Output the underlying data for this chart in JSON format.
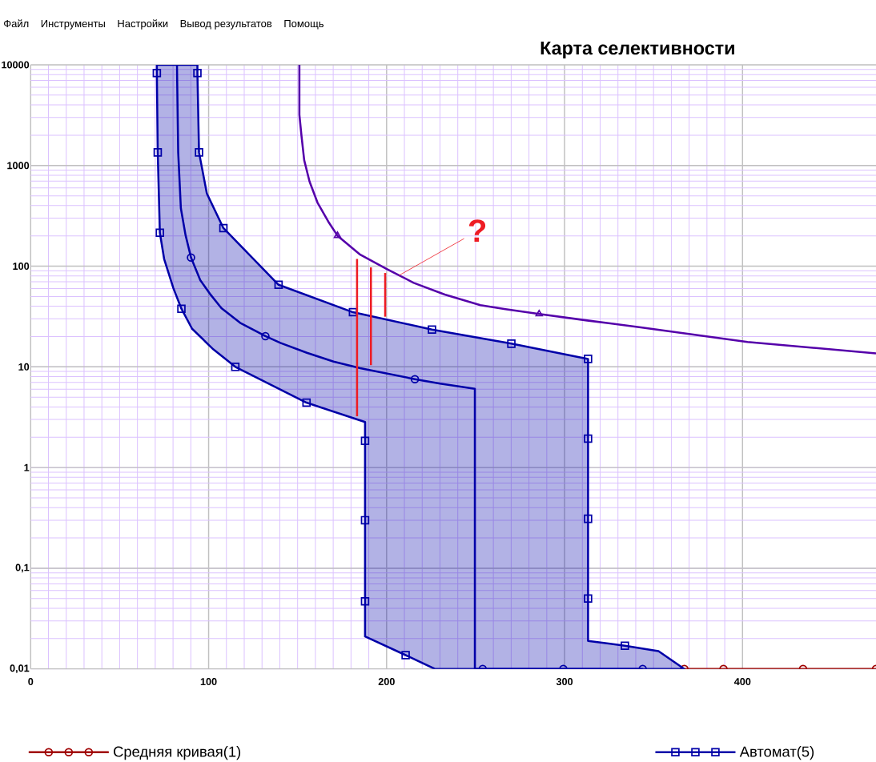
{
  "chart_data": {
    "type": "line",
    "title": "Карта селективности",
    "annotations": [
      "Файл",
      "Инструменты",
      "Настройки",
      "Вывод результатов",
      "Помощь",
      {
        "text": "?",
        "x": 207,
        "y": 81
      }
    ],
    "xlim": [
      0,
      475
    ],
    "xticks": [
      0,
      100,
      200,
      300,
      400
    ],
    "ylim": [
      0.01,
      10000
    ],
    "yticks": [
      {
        "value": 0.01,
        "label": "0,01"
      },
      {
        "value": 0.1,
        "label": "0,1"
      },
      1,
      10,
      100,
      1000,
      10000
    ],
    "log": "y",
    "grid": true,
    "legend": "bottom",
    "series": [
      {
        "name": "Средняя кривая(1)",
        "color": "#a00000",
        "marker": "circle",
        "x": [
          367.3,
          389.3,
          434.0,
          475
        ],
        "values": [
          0.01,
          0.01,
          0.01,
          0.01
        ]
      },
      {
        "type": "area",
        "color": "#0000a8",
        "x": [
          70.9,
          70.9,
          71.4,
          72.6,
          75.0,
          80.2,
          84.7,
          90.7,
          102.7,
          115.0,
          155.0,
          187.9,
          187.9,
          187.9,
          187.9,
          187.9,
          210.7,
          227.1,
          367.3,
          352.8,
          333.9,
          313.2,
          313.2,
          313.2,
          313.2,
          313.2,
          270.1,
          225.5,
          181.1,
          139.3,
          108.3,
          99.0,
          94.6,
          93.7,
          93.7
        ],
        "values": [
          10000,
          8300,
          1350,
          215,
          118,
          60.4,
          37.8,
          23.9,
          14.9,
          10.0,
          4.41,
          2.83,
          1.84,
          0.3,
          0.047,
          0.021,
          0.0137,
          0.01,
          0.01,
          0.015,
          0.017,
          0.019,
          0.05,
          0.31,
          1.94,
          12.0,
          17.0,
          23.5,
          34.9,
          65.4,
          239,
          527,
          1350,
          8300,
          10000
        ]
      },
      {
        "name": "Автомат(5)",
        "type": "scatter",
        "color": "#0000a8",
        "marker": "square",
        "x": [
          70.9,
          71.4,
          72.6,
          84.7,
          115.0,
          155.0,
          187.9,
          187.9,
          187.9,
          210.7,
          333.9,
          313.2,
          313.2,
          313.2,
          313.2,
          270.1,
          225.5,
          181.1,
          139.3,
          108.3,
          94.6,
          93.7
        ],
        "values": [
          8300,
          1350,
          215,
          37.8,
          10.0,
          4.41,
          1.84,
          0.3,
          0.047,
          0.0137,
          0.017,
          0.05,
          0.31,
          1.94,
          12.0,
          17.0,
          23.5,
          34.9,
          65.4,
          239,
          1350,
          8300
        ]
      },
      {
        "color": "#0000a8",
        "x": [
          82.2,
          82.9,
          84.4,
          87.0,
          90.1,
          95.3,
          101.2,
          107.2,
          117.7,
          131.9,
          140.3,
          155.2,
          170.2,
          185.2,
          215.9,
          230.1,
          249.6,
          249.6,
          343.9
        ],
        "values": [
          10000,
          1350,
          376,
          205,
          122,
          72.6,
          51.9,
          38.3,
          27.4,
          20.2,
          17.3,
          13.8,
          11.3,
          9.69,
          7.55,
          6.81,
          6.06,
          0.01,
          0.01
        ]
      },
      {
        "type": "scatter",
        "color": "#0000a8",
        "marker": "circle",
        "x": [
          90.1,
          131.9,
          215.9,
          254.0,
          299.3,
          343.9
        ],
        "values": [
          122,
          20.2,
          7.55,
          0.01,
          0.01,
          0.01
        ]
      },
      {
        "color": "#5500aa",
        "x": [
          151.0,
          151.0,
          152.2,
          153.7,
          156.7,
          161.2,
          167.2,
          172.4,
          185.2,
          200.1,
          215.2,
          232.7,
          252.7,
          266.8,
          285.7,
          312.7,
          342.8,
          402.8,
          475
        ],
        "values": [
          10000,
          3190,
          1960,
          1130,
          693,
          427,
          278,
          201,
          130,
          93.8,
          68.4,
          52.3,
          41.0,
          37.5,
          33.5,
          28.9,
          24.7,
          17.7,
          13.6
        ]
      },
      {
        "type": "scatter",
        "color": "#5500aa",
        "marker": "triangle",
        "x": [
          172.4,
          285.7
        ],
        "values": [
          201,
          33.5
        ]
      },
      {
        "color": "#ee1c24",
        "x": [
          183.4,
          183.4
        ],
        "values": [
          118,
          3.23
        ]
      },
      {
        "color": "#ee1c24",
        "x": [
          191.2,
          191.2
        ],
        "values": [
          97.3,
          10.4
        ]
      },
      {
        "color": "#ee1c24",
        "x": [
          199.2,
          199.2
        ],
        "values": [
          85.6,
          31.5
        ]
      }
    ]
  }
}
